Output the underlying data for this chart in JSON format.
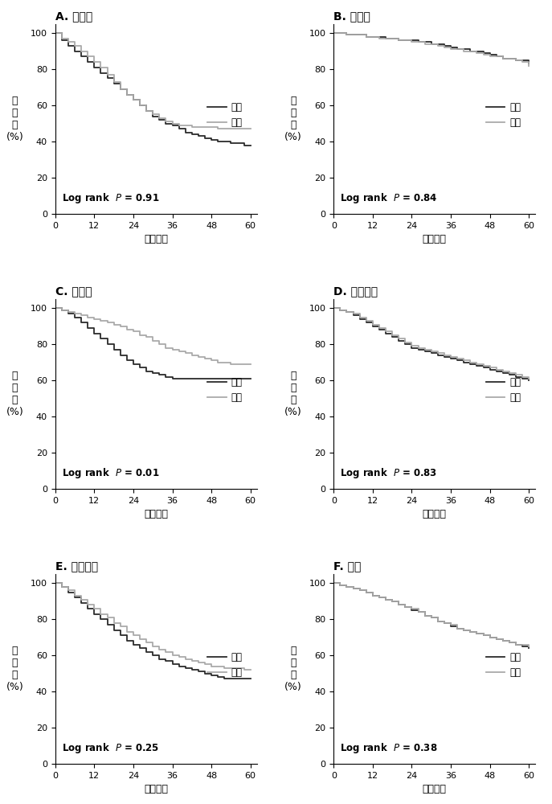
{
  "panels": [
    {
      "label": "A",
      "title": "膀胱癌",
      "p_value": "0.91",
      "low_curve": [
        [
          0,
          100
        ],
        [
          2,
          96
        ],
        [
          4,
          93
        ],
        [
          6,
          90
        ],
        [
          8,
          87
        ],
        [
          10,
          84
        ],
        [
          12,
          81
        ],
        [
          14,
          78
        ],
        [
          16,
          75
        ],
        [
          18,
          72
        ],
        [
          20,
          69
        ],
        [
          22,
          66
        ],
        [
          24,
          63
        ],
        [
          26,
          60
        ],
        [
          28,
          57
        ],
        [
          30,
          54
        ],
        [
          32,
          52
        ],
        [
          34,
          50
        ],
        [
          36,
          49
        ],
        [
          38,
          47
        ],
        [
          40,
          45
        ],
        [
          42,
          44
        ],
        [
          44,
          43
        ],
        [
          46,
          42
        ],
        [
          48,
          41
        ],
        [
          50,
          40
        ],
        [
          52,
          40
        ],
        [
          54,
          39
        ],
        [
          56,
          39
        ],
        [
          58,
          38
        ],
        [
          60,
          38
        ]
      ],
      "high_curve": [
        [
          0,
          100
        ],
        [
          2,
          97
        ],
        [
          4,
          95
        ],
        [
          6,
          93
        ],
        [
          8,
          90
        ],
        [
          10,
          87
        ],
        [
          12,
          84
        ],
        [
          14,
          81
        ],
        [
          16,
          77
        ],
        [
          18,
          73
        ],
        [
          20,
          69
        ],
        [
          22,
          66
        ],
        [
          24,
          63
        ],
        [
          26,
          60
        ],
        [
          28,
          57
        ],
        [
          30,
          55
        ],
        [
          32,
          53
        ],
        [
          34,
          51
        ],
        [
          36,
          50
        ],
        [
          38,
          49
        ],
        [
          40,
          49
        ],
        [
          42,
          48
        ],
        [
          44,
          48
        ],
        [
          46,
          48
        ],
        [
          48,
          48
        ],
        [
          50,
          47
        ],
        [
          52,
          47
        ],
        [
          54,
          47
        ],
        [
          56,
          47
        ],
        [
          58,
          47
        ],
        [
          60,
          47
        ]
      ]
    },
    {
      "label": "B",
      "title": "乳腺癌",
      "p_value": "0.84",
      "low_curve": [
        [
          0,
          100
        ],
        [
          2,
          100
        ],
        [
          4,
          99
        ],
        [
          6,
          99
        ],
        [
          8,
          99
        ],
        [
          10,
          98
        ],
        [
          12,
          98
        ],
        [
          14,
          98
        ],
        [
          16,
          97
        ],
        [
          18,
          97
        ],
        [
          20,
          96
        ],
        [
          22,
          96
        ],
        [
          24,
          96
        ],
        [
          26,
          95
        ],
        [
          28,
          95
        ],
        [
          30,
          94
        ],
        [
          32,
          94
        ],
        [
          34,
          93
        ],
        [
          36,
          92
        ],
        [
          38,
          91
        ],
        [
          40,
          91
        ],
        [
          42,
          90
        ],
        [
          44,
          90
        ],
        [
          46,
          89
        ],
        [
          48,
          88
        ],
        [
          50,
          87
        ],
        [
          52,
          86
        ],
        [
          54,
          86
        ],
        [
          56,
          85
        ],
        [
          58,
          85
        ],
        [
          60,
          83
        ]
      ],
      "high_curve": [
        [
          0,
          100
        ],
        [
          2,
          100
        ],
        [
          4,
          99
        ],
        [
          6,
          99
        ],
        [
          8,
          99
        ],
        [
          10,
          98
        ],
        [
          12,
          98
        ],
        [
          14,
          97
        ],
        [
          16,
          97
        ],
        [
          18,
          97
        ],
        [
          20,
          96
        ],
        [
          22,
          96
        ],
        [
          24,
          95
        ],
        [
          26,
          95
        ],
        [
          28,
          94
        ],
        [
          30,
          94
        ],
        [
          32,
          93
        ],
        [
          34,
          92
        ],
        [
          36,
          91
        ],
        [
          38,
          91
        ],
        [
          40,
          90
        ],
        [
          42,
          90
        ],
        [
          44,
          89
        ],
        [
          46,
          88
        ],
        [
          48,
          87
        ],
        [
          50,
          87
        ],
        [
          52,
          86
        ],
        [
          54,
          86
        ],
        [
          56,
          85
        ],
        [
          58,
          84
        ],
        [
          60,
          82
        ]
      ]
    },
    {
      "label": "C",
      "title": "宫颈癌",
      "p_value": "0.01",
      "low_curve": [
        [
          0,
          100
        ],
        [
          2,
          99
        ],
        [
          4,
          97
        ],
        [
          6,
          95
        ],
        [
          8,
          92
        ],
        [
          10,
          89
        ],
        [
          12,
          86
        ],
        [
          14,
          83
        ],
        [
          16,
          80
        ],
        [
          18,
          77
        ],
        [
          20,
          74
        ],
        [
          22,
          71
        ],
        [
          24,
          69
        ],
        [
          26,
          67
        ],
        [
          28,
          65
        ],
        [
          30,
          64
        ],
        [
          32,
          63
        ],
        [
          34,
          62
        ],
        [
          36,
          61
        ],
        [
          38,
          61
        ],
        [
          40,
          61
        ],
        [
          42,
          61
        ],
        [
          44,
          61
        ],
        [
          46,
          61
        ],
        [
          48,
          61
        ],
        [
          50,
          61
        ],
        [
          52,
          61
        ],
        [
          54,
          61
        ],
        [
          56,
          61
        ],
        [
          58,
          61
        ],
        [
          60,
          61
        ]
      ],
      "high_curve": [
        [
          0,
          100
        ],
        [
          2,
          99
        ],
        [
          4,
          98
        ],
        [
          6,
          97
        ],
        [
          8,
          96
        ],
        [
          10,
          95
        ],
        [
          12,
          94
        ],
        [
          14,
          93
        ],
        [
          16,
          92
        ],
        [
          18,
          91
        ],
        [
          20,
          90
        ],
        [
          22,
          88
        ],
        [
          24,
          87
        ],
        [
          26,
          85
        ],
        [
          28,
          84
        ],
        [
          30,
          82
        ],
        [
          32,
          80
        ],
        [
          34,
          78
        ],
        [
          36,
          77
        ],
        [
          38,
          76
        ],
        [
          40,
          75
        ],
        [
          42,
          74
        ],
        [
          44,
          73
        ],
        [
          46,
          72
        ],
        [
          48,
          71
        ],
        [
          50,
          70
        ],
        [
          52,
          70
        ],
        [
          54,
          69
        ],
        [
          56,
          69
        ],
        [
          58,
          69
        ],
        [
          60,
          69
        ]
      ]
    },
    {
      "label": "D",
      "title": "结直肠癌",
      "p_value": "0.83",
      "low_curve": [
        [
          0,
          100
        ],
        [
          2,
          99
        ],
        [
          4,
          98
        ],
        [
          6,
          96
        ],
        [
          8,
          94
        ],
        [
          10,
          92
        ],
        [
          12,
          90
        ],
        [
          14,
          88
        ],
        [
          16,
          86
        ],
        [
          18,
          84
        ],
        [
          20,
          82
        ],
        [
          22,
          80
        ],
        [
          24,
          78
        ],
        [
          26,
          77
        ],
        [
          28,
          76
        ],
        [
          30,
          75
        ],
        [
          32,
          74
        ],
        [
          34,
          73
        ],
        [
          36,
          72
        ],
        [
          38,
          71
        ],
        [
          40,
          70
        ],
        [
          42,
          69
        ],
        [
          44,
          68
        ],
        [
          46,
          67
        ],
        [
          48,
          66
        ],
        [
          50,
          65
        ],
        [
          52,
          64
        ],
        [
          54,
          63
        ],
        [
          56,
          62
        ],
        [
          58,
          61
        ],
        [
          60,
          60
        ]
      ],
      "high_curve": [
        [
          0,
          100
        ],
        [
          2,
          99
        ],
        [
          4,
          98
        ],
        [
          6,
          97
        ],
        [
          8,
          95
        ],
        [
          10,
          93
        ],
        [
          12,
          91
        ],
        [
          14,
          89
        ],
        [
          16,
          87
        ],
        [
          18,
          85
        ],
        [
          20,
          83
        ],
        [
          22,
          81
        ],
        [
          24,
          79
        ],
        [
          26,
          78
        ],
        [
          28,
          77
        ],
        [
          30,
          76
        ],
        [
          32,
          75
        ],
        [
          34,
          74
        ],
        [
          36,
          73
        ],
        [
          38,
          72
        ],
        [
          40,
          71
        ],
        [
          42,
          70
        ],
        [
          44,
          69
        ],
        [
          46,
          68
        ],
        [
          48,
          67
        ],
        [
          50,
          66
        ],
        [
          52,
          65
        ],
        [
          54,
          64
        ],
        [
          56,
          63
        ],
        [
          58,
          62
        ],
        [
          60,
          61
        ]
      ]
    },
    {
      "label": "E",
      "title": "头颈鳞癌",
      "p_value": "0.25",
      "low_curve": [
        [
          0,
          100
        ],
        [
          2,
          98
        ],
        [
          4,
          95
        ],
        [
          6,
          92
        ],
        [
          8,
          89
        ],
        [
          10,
          86
        ],
        [
          12,
          83
        ],
        [
          14,
          80
        ],
        [
          16,
          77
        ],
        [
          18,
          74
        ],
        [
          20,
          71
        ],
        [
          22,
          68
        ],
        [
          24,
          66
        ],
        [
          26,
          64
        ],
        [
          28,
          62
        ],
        [
          30,
          60
        ],
        [
          32,
          58
        ],
        [
          34,
          57
        ],
        [
          36,
          55
        ],
        [
          38,
          54
        ],
        [
          40,
          53
        ],
        [
          42,
          52
        ],
        [
          44,
          51
        ],
        [
          46,
          50
        ],
        [
          48,
          49
        ],
        [
          50,
          48
        ],
        [
          52,
          47
        ],
        [
          54,
          47
        ],
        [
          56,
          47
        ],
        [
          58,
          47
        ],
        [
          60,
          47
        ]
      ],
      "high_curve": [
        [
          0,
          100
        ],
        [
          2,
          98
        ],
        [
          4,
          96
        ],
        [
          6,
          93
        ],
        [
          8,
          91
        ],
        [
          10,
          88
        ],
        [
          12,
          86
        ],
        [
          14,
          83
        ],
        [
          16,
          81
        ],
        [
          18,
          78
        ],
        [
          20,
          76
        ],
        [
          22,
          73
        ],
        [
          24,
          71
        ],
        [
          26,
          69
        ],
        [
          28,
          67
        ],
        [
          30,
          65
        ],
        [
          32,
          63
        ],
        [
          34,
          62
        ],
        [
          36,
          60
        ],
        [
          38,
          59
        ],
        [
          40,
          58
        ],
        [
          42,
          57
        ],
        [
          44,
          56
        ],
        [
          46,
          55
        ],
        [
          48,
          54
        ],
        [
          50,
          54
        ],
        [
          52,
          53
        ],
        [
          54,
          53
        ],
        [
          56,
          53
        ],
        [
          58,
          52
        ],
        [
          60,
          52
        ]
      ]
    },
    {
      "label": "F",
      "title": "肾癌",
      "p_value": "0.38",
      "low_curve": [
        [
          0,
          100
        ],
        [
          2,
          99
        ],
        [
          4,
          98
        ],
        [
          6,
          97
        ],
        [
          8,
          96
        ],
        [
          10,
          95
        ],
        [
          12,
          93
        ],
        [
          14,
          92
        ],
        [
          16,
          91
        ],
        [
          18,
          90
        ],
        [
          20,
          88
        ],
        [
          22,
          87
        ],
        [
          24,
          85
        ],
        [
          26,
          84
        ],
        [
          28,
          82
        ],
        [
          30,
          81
        ],
        [
          32,
          79
        ],
        [
          34,
          78
        ],
        [
          36,
          76
        ],
        [
          38,
          75
        ],
        [
          40,
          74
        ],
        [
          42,
          73
        ],
        [
          44,
          72
        ],
        [
          46,
          71
        ],
        [
          48,
          70
        ],
        [
          50,
          69
        ],
        [
          52,
          68
        ],
        [
          54,
          67
        ],
        [
          56,
          66
        ],
        [
          58,
          65
        ],
        [
          60,
          64
        ]
      ],
      "high_curve": [
        [
          0,
          100
        ],
        [
          2,
          99
        ],
        [
          4,
          98
        ],
        [
          6,
          97
        ],
        [
          8,
          96
        ],
        [
          10,
          95
        ],
        [
          12,
          93
        ],
        [
          14,
          92
        ],
        [
          16,
          91
        ],
        [
          18,
          90
        ],
        [
          20,
          88
        ],
        [
          22,
          87
        ],
        [
          24,
          86
        ],
        [
          26,
          84
        ],
        [
          28,
          82
        ],
        [
          30,
          81
        ],
        [
          32,
          79
        ],
        [
          34,
          78
        ],
        [
          36,
          77
        ],
        [
          38,
          75
        ],
        [
          40,
          74
        ],
        [
          42,
          73
        ],
        [
          44,
          72
        ],
        [
          46,
          71
        ],
        [
          48,
          70
        ],
        [
          50,
          69
        ],
        [
          52,
          68
        ],
        [
          54,
          67
        ],
        [
          56,
          66
        ],
        [
          58,
          66
        ],
        [
          60,
          65
        ]
      ]
    }
  ],
  "low_color": "#2b2b2b",
  "high_color": "#aaaaaa",
  "ylabel": "总\n生\n存\n(%)",
  "xlabel": "生存时间",
  "low_label": "低组",
  "high_label": "高组",
  "xticks": [
    0,
    12,
    24,
    36,
    48,
    60
  ],
  "yticks": [
    0,
    20,
    40,
    60,
    80,
    100
  ],
  "ylim": [
    0,
    105
  ],
  "xlim": [
    0,
    62
  ]
}
